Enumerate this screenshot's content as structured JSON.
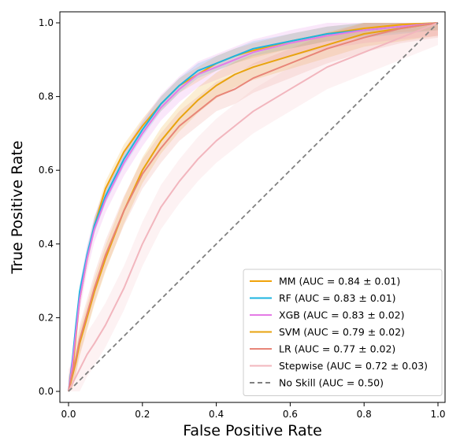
{
  "chart_data": {
    "type": "line",
    "title": "",
    "xlabel": "False Positive Rate",
    "ylabel": "True Positive Rate",
    "xlim": [
      0.0,
      1.0
    ],
    "ylim": [
      0.0,
      1.0
    ],
    "xticks": [
      "0.0",
      "0.2",
      "0.4",
      "0.6",
      "0.8",
      "1.0"
    ],
    "yticks": [
      "0.0",
      "0.2",
      "0.4",
      "0.6",
      "0.8",
      "1.0"
    ],
    "grid": false,
    "legend_position": "bottom-right",
    "series": [
      {
        "name": "MM (AUC = 0.84 ± 0.01)",
        "color": "#F0A30A",
        "points": [
          [
            0,
            0
          ],
          [
            0.01,
            0.05
          ],
          [
            0.02,
            0.15
          ],
          [
            0.03,
            0.25
          ],
          [
            0.05,
            0.36
          ],
          [
            0.07,
            0.45
          ],
          [
            0.1,
            0.55
          ],
          [
            0.15,
            0.65
          ],
          [
            0.2,
            0.72
          ],
          [
            0.25,
            0.78
          ],
          [
            0.3,
            0.83
          ],
          [
            0.35,
            0.86
          ],
          [
            0.4,
            0.89
          ],
          [
            0.45,
            0.91
          ],
          [
            0.5,
            0.925
          ],
          [
            0.6,
            0.95
          ],
          [
            0.7,
            0.97
          ],
          [
            0.8,
            0.985
          ],
          [
            0.9,
            0.995
          ],
          [
            1.0,
            1.0
          ]
        ],
        "band": 0.02
      },
      {
        "name": "RF (AUC = 0.83 ± 0.01)",
        "color": "#1CB4E0",
        "points": [
          [
            0,
            0
          ],
          [
            0.01,
            0.08
          ],
          [
            0.02,
            0.18
          ],
          [
            0.03,
            0.27
          ],
          [
            0.05,
            0.37
          ],
          [
            0.07,
            0.45
          ],
          [
            0.1,
            0.53
          ],
          [
            0.15,
            0.63
          ],
          [
            0.2,
            0.71
          ],
          [
            0.25,
            0.78
          ],
          [
            0.3,
            0.83
          ],
          [
            0.35,
            0.87
          ],
          [
            0.4,
            0.89
          ],
          [
            0.45,
            0.91
          ],
          [
            0.5,
            0.93
          ],
          [
            0.6,
            0.95
          ],
          [
            0.7,
            0.97
          ],
          [
            0.8,
            0.98
          ],
          [
            0.9,
            0.99
          ],
          [
            1.0,
            1.0
          ]
        ],
        "band": 0.02
      },
      {
        "name": "XGB (AUC = 0.83 ± 0.02)",
        "color": "#E57BE6",
        "points": [
          [
            0,
            0
          ],
          [
            0.01,
            0.07
          ],
          [
            0.02,
            0.16
          ],
          [
            0.03,
            0.25
          ],
          [
            0.05,
            0.36
          ],
          [
            0.07,
            0.44
          ],
          [
            0.1,
            0.52
          ],
          [
            0.15,
            0.62
          ],
          [
            0.2,
            0.7
          ],
          [
            0.25,
            0.77
          ],
          [
            0.3,
            0.82
          ],
          [
            0.35,
            0.86
          ],
          [
            0.4,
            0.88
          ],
          [
            0.45,
            0.9
          ],
          [
            0.5,
            0.92
          ],
          [
            0.6,
            0.945
          ],
          [
            0.7,
            0.965
          ],
          [
            0.8,
            0.98
          ],
          [
            0.9,
            0.99
          ],
          [
            1.0,
            1.0
          ]
        ],
        "band": 0.035
      },
      {
        "name": "SVM (AUC = 0.79 ± 0.02)",
        "color": "#E8A30F",
        "points": [
          [
            0,
            0
          ],
          [
            0.01,
            0.04
          ],
          [
            0.02,
            0.08
          ],
          [
            0.03,
            0.13
          ],
          [
            0.05,
            0.2
          ],
          [
            0.07,
            0.27
          ],
          [
            0.1,
            0.36
          ],
          [
            0.15,
            0.49
          ],
          [
            0.2,
            0.6
          ],
          [
            0.25,
            0.68
          ],
          [
            0.3,
            0.74
          ],
          [
            0.35,
            0.79
          ],
          [
            0.4,
            0.83
          ],
          [
            0.45,
            0.86
          ],
          [
            0.5,
            0.88
          ],
          [
            0.6,
            0.91
          ],
          [
            0.7,
            0.94
          ],
          [
            0.8,
            0.97
          ],
          [
            0.9,
            0.985
          ],
          [
            1.0,
            1.0
          ]
        ],
        "band": 0.035
      },
      {
        "name": "LR (AUC = 0.77 ± 0.02)",
        "color": "#E88578",
        "points": [
          [
            0,
            0
          ],
          [
            0.01,
            0.05
          ],
          [
            0.02,
            0.09
          ],
          [
            0.03,
            0.14
          ],
          [
            0.05,
            0.21
          ],
          [
            0.07,
            0.28
          ],
          [
            0.1,
            0.37
          ],
          [
            0.15,
            0.49
          ],
          [
            0.2,
            0.59
          ],
          [
            0.25,
            0.66
          ],
          [
            0.3,
            0.72
          ],
          [
            0.35,
            0.76
          ],
          [
            0.4,
            0.8
          ],
          [
            0.45,
            0.82
          ],
          [
            0.5,
            0.85
          ],
          [
            0.6,
            0.89
          ],
          [
            0.7,
            0.93
          ],
          [
            0.8,
            0.96
          ],
          [
            0.9,
            0.985
          ],
          [
            1.0,
            1.0
          ]
        ],
        "band": 0.04
      },
      {
        "name": "Stepwise (AUC = 0.72 ± 0.03)",
        "color": "#F2B6BE",
        "points": [
          [
            0,
            0
          ],
          [
            0.01,
            0.02
          ],
          [
            0.02,
            0.04
          ],
          [
            0.03,
            0.06
          ],
          [
            0.05,
            0.1
          ],
          [
            0.07,
            0.13
          ],
          [
            0.1,
            0.18
          ],
          [
            0.15,
            0.28
          ],
          [
            0.2,
            0.4
          ],
          [
            0.25,
            0.5
          ],
          [
            0.3,
            0.57
          ],
          [
            0.35,
            0.63
          ],
          [
            0.4,
            0.68
          ],
          [
            0.45,
            0.72
          ],
          [
            0.5,
            0.76
          ],
          [
            0.6,
            0.82
          ],
          [
            0.7,
            0.88
          ],
          [
            0.8,
            0.92
          ],
          [
            0.9,
            0.96
          ],
          [
            1.0,
            1.0
          ]
        ],
        "band": 0.06
      },
      {
        "name": "No Skill (AUC = 0.50)",
        "color": "#808080",
        "dashed": true,
        "points": [
          [
            0,
            0
          ],
          [
            1,
            1
          ]
        ]
      }
    ]
  }
}
